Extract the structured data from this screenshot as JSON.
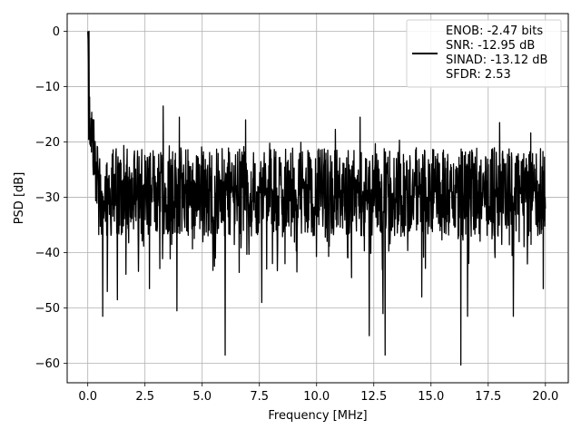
{
  "chart_data": {
    "type": "line",
    "xlabel": "Frequency [MHz]",
    "ylabel": "PSD [dB]",
    "xlim": [
      -0.9,
      21.0
    ],
    "ylim": [
      -63.5,
      3.2
    ],
    "x_ticks": [
      0.0,
      2.5,
      5.0,
      7.5,
      10.0,
      12.5,
      15.0,
      17.5,
      20.0
    ],
    "x_tick_labels": [
      "0.0",
      "2.5",
      "5.0",
      "7.5",
      "10.0",
      "12.5",
      "15.0",
      "17.5",
      "20.0"
    ],
    "y_ticks": [
      0,
      -10,
      -20,
      -30,
      -40,
      -50,
      -60
    ],
    "y_tick_labels": [
      "0",
      "−10",
      "−20",
      "−30",
      "−40",
      "−50",
      "−60"
    ],
    "grid": true,
    "legend_position": "top-right",
    "line_color": "#000000",
    "series": [
      {
        "legend_lines": [
          "ENOB: -2.47 bits",
          "SNR: -12.95 dB",
          "SINAD: -13.12 dB",
          "SFDR: 2.53"
        ],
        "x_start": 0.0,
        "x_end": 20.0,
        "points_count": 1500,
        "peak_start_value": 0.0,
        "noise_floor_range": [
          -37.0,
          -21.0
        ],
        "notable_spikes_up": [
          [
            3.3,
            -13.5
          ],
          [
            4.0,
            -15.5
          ],
          [
            6.9,
            -16.0
          ],
          [
            11.9,
            -15.5
          ],
          [
            18.0,
            -16.5
          ],
          [
            0.05,
            0.0
          ]
        ],
        "notable_spikes_down": [
          [
            0.65,
            -51.5
          ],
          [
            0.85,
            -47.0
          ],
          [
            1.3,
            -48.5
          ],
          [
            2.7,
            -46.5
          ],
          [
            3.9,
            -50.5
          ],
          [
            6.0,
            -58.5
          ],
          [
            7.6,
            -49.0
          ],
          [
            12.3,
            -55.0
          ],
          [
            12.9,
            -51.0
          ],
          [
            13.0,
            -58.5
          ],
          [
            14.6,
            -48.0
          ],
          [
            16.3,
            -60.3
          ],
          [
            16.6,
            -51.5
          ],
          [
            18.6,
            -51.5
          ],
          [
            19.9,
            -46.5
          ]
        ]
      }
    ]
  }
}
